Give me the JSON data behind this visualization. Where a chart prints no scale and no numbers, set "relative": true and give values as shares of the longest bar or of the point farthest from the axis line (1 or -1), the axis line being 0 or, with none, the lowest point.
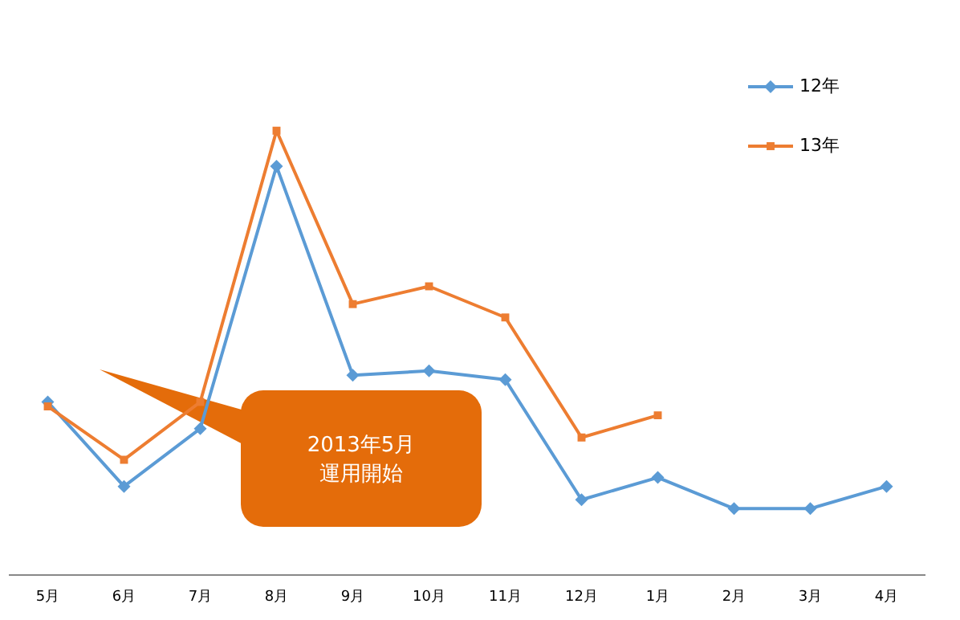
{
  "chart_data": {
    "type": "line",
    "relative": true,
    "categories": [
      "5月",
      "6月",
      "7月",
      "8月",
      "9月",
      "10月",
      "11月",
      "12月",
      "1月",
      "2月",
      "3月",
      "4月"
    ],
    "series": [
      {
        "name": "12年",
        "color": "#5b9bd5",
        "marker": "diamond",
        "values": [
          0.39,
          0.2,
          0.33,
          0.92,
          0.45,
          0.46,
          0.44,
          0.17,
          0.22,
          0.15,
          0.15,
          0.2
        ]
      },
      {
        "name": "13年",
        "color": "#ed7d31",
        "marker": "square",
        "values": [
          0.38,
          0.26,
          0.39,
          1,
          0.61,
          0.65,
          0.58,
          0.31,
          0.36,
          null,
          null,
          null
        ]
      }
    ],
    "annotations": [
      "2013年5月運用開始"
    ],
    "legend": "top right",
    "grid": false
  }
}
